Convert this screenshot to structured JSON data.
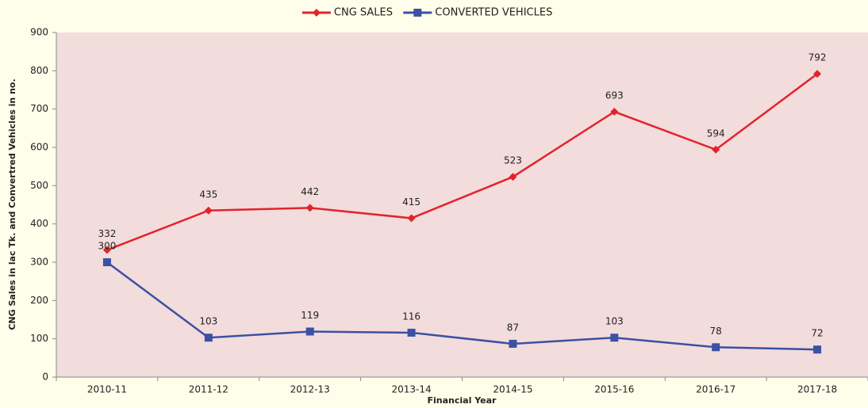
{
  "chart_data": {
    "type": "line",
    "x_label": "Financial Year",
    "y_label": "CNG Sales in lac Tk.  and Convertred Vehicles in no.",
    "categories": [
      "2010-11",
      "2011-12",
      "2012-13",
      "2013-14",
      "2014-15",
      "2015-16",
      "2016-17",
      "2017-18"
    ],
    "series": [
      {
        "name": "CNG SALES",
        "color": "#e3232b",
        "marker": "diamond",
        "values": [
          332,
          435,
          442,
          415,
          523,
          693,
          594,
          792
        ]
      },
      {
        "name": "CONVERTED VEHICLES",
        "color": "#3b51a3",
        "marker": "square",
        "values": [
          300,
          103,
          119,
          116,
          87,
          103,
          78,
          72
        ]
      }
    ],
    "ylim": [
      0,
      900
    ],
    "yticks": [
      0,
      100,
      200,
      300,
      400,
      500,
      600,
      700,
      800,
      900
    ],
    "legend": "top",
    "background": "#f3dcdc"
  }
}
